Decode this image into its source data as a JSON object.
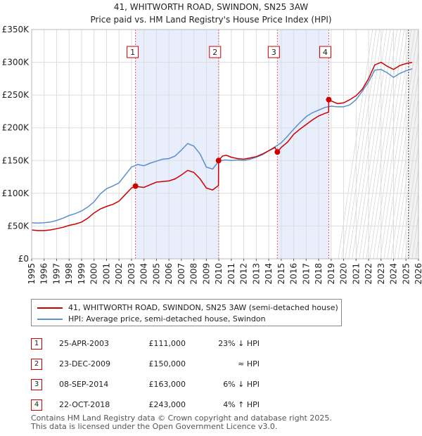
{
  "title_line1": "41, WHITWORTH ROAD, SWINDON, SN25 3AW",
  "title_line2": "Price paid vs. HM Land Registry's House Price Index (HPI)",
  "legend": {
    "property_label": "41, WHITWORTH ROAD, SWINDON, SN25 3AW (semi-detached house)",
    "hpi_label": "HPI: Average price, semi-detached house, Swindon"
  },
  "colors": {
    "property": "#cc0000",
    "hpi": "#5a8fd0",
    "shade": "#e8eefb",
    "marker_line": "#e06060"
  },
  "sales": [
    {
      "num": "1",
      "date": "25-APR-2003",
      "price": "£111,000",
      "hpi": "23% ↓ HPI"
    },
    {
      "num": "2",
      "date": "23-DEC-2009",
      "price": "£150,000",
      "hpi": "≈ HPI"
    },
    {
      "num": "3",
      "date": "08-SEP-2014",
      "price": "£163,000",
      "hpi": "6% ↓ HPI"
    },
    {
      "num": "4",
      "date": "22-OCT-2018",
      "price": "£243,000",
      "hpi": "4% ↑ HPI"
    }
  ],
  "footer_line1": "Contains HM Land Registry data © Crown copyright and database right 2025.",
  "footer_line2": "This data is licensed under the Open Government Licence v3.0.",
  "chart_data": {
    "type": "line",
    "title": "41, WHITWORTH ROAD, SWINDON, SN25 3AW",
    "subtitle": "Price paid vs. HM Land Registry's House Price Index (HPI)",
    "xlim": [
      1995,
      2026
    ],
    "ylim": [
      0,
      350000
    ],
    "x_ticks": [
      "1995",
      "1996",
      "1997",
      "1998",
      "1999",
      "2000",
      "2001",
      "2002",
      "2003",
      "2004",
      "2005",
      "2006",
      "2007",
      "2008",
      "2009",
      "2010",
      "2011",
      "2012",
      "2013",
      "2014",
      "2015",
      "2016",
      "2017",
      "2018",
      "2019",
      "2020",
      "2021",
      "2022",
      "2023",
      "2024",
      "2025",
      "2026"
    ],
    "y_ticks": [
      {
        "value": 0,
        "label": "£0"
      },
      {
        "value": 50000,
        "label": "£50K"
      },
      {
        "value": 100000,
        "label": "£100K"
      },
      {
        "value": 150000,
        "label": "£150K"
      },
      {
        "value": 200000,
        "label": "£200K"
      },
      {
        "value": 250000,
        "label": "£250K"
      },
      {
        "value": 300000,
        "label": "£300K"
      },
      {
        "value": 350000,
        "label": "£350K"
      }
    ],
    "shaded_ranges": [
      [
        2003.3,
        2009.98
      ],
      [
        2014.69,
        2018.81
      ]
    ],
    "future_start": 2025.2,
    "sale_markers": [
      {
        "label": "1",
        "x": 2003.32,
        "y": 111000
      },
      {
        "label": "2",
        "x": 2009.98,
        "y": 150000
      },
      {
        "label": "3",
        "x": 2014.69,
        "y": 163000
      },
      {
        "label": "4",
        "x": 2018.81,
        "y": 243000
      }
    ],
    "series": [
      {
        "name": "HPI: Average price, semi-detached house, Swindon",
        "color": "#5a8fd0",
        "points": [
          [
            1995,
            55000
          ],
          [
            1995.5,
            54500
          ],
          [
            1996,
            55000
          ],
          [
            1996.5,
            56000
          ],
          [
            1997,
            58500
          ],
          [
            1997.5,
            62000
          ],
          [
            1998,
            66000
          ],
          [
            1998.5,
            69000
          ],
          [
            1999,
            73000
          ],
          [
            1999.5,
            79000
          ],
          [
            2000,
            87000
          ],
          [
            2000.5,
            99000
          ],
          [
            2001,
            107000
          ],
          [
            2001.5,
            111000
          ],
          [
            2002,
            116000
          ],
          [
            2002.5,
            128000
          ],
          [
            2003,
            140000
          ],
          [
            2003.5,
            144000
          ],
          [
            2004,
            142000
          ],
          [
            2004.5,
            146000
          ],
          [
            2005,
            149000
          ],
          [
            2005.5,
            152000
          ],
          [
            2006,
            153000
          ],
          [
            2006.5,
            157000
          ],
          [
            2007,
            166000
          ],
          [
            2007.5,
            176000
          ],
          [
            2008,
            172000
          ],
          [
            2008.5,
            160000
          ],
          [
            2009,
            140000
          ],
          [
            2009.5,
            137000
          ],
          [
            2010,
            149000
          ],
          [
            2010.5,
            151000
          ],
          [
            2011,
            150000
          ],
          [
            2011.5,
            151000
          ],
          [
            2012,
            150000
          ],
          [
            2012.5,
            152000
          ],
          [
            2013,
            155000
          ],
          [
            2013.5,
            159000
          ],
          [
            2014,
            165000
          ],
          [
            2014.5,
            171000
          ],
          [
            2015,
            177000
          ],
          [
            2015.5,
            187000
          ],
          [
            2016,
            198000
          ],
          [
            2016.5,
            208000
          ],
          [
            2017,
            217000
          ],
          [
            2017.5,
            223000
          ],
          [
            2018,
            227000
          ],
          [
            2018.5,
            231000
          ],
          [
            2019,
            233000
          ],
          [
            2019.5,
            232000
          ],
          [
            2020,
            232000
          ],
          [
            2020.5,
            235000
          ],
          [
            2021,
            243000
          ],
          [
            2021.5,
            256000
          ],
          [
            2022,
            270000
          ],
          [
            2022.5,
            288000
          ],
          [
            2023,
            289000
          ],
          [
            2023.5,
            284000
          ],
          [
            2024,
            277000
          ],
          [
            2024.5,
            283000
          ],
          [
            2025,
            287000
          ],
          [
            2025.5,
            290000
          ]
        ]
      },
      {
        "name": "41, WHITWORTH ROAD, SWINDON, SN25 3AW (semi-detached house)",
        "color": "#cc0000",
        "points": [
          [
            1995,
            44000
          ],
          [
            1995.5,
            43000
          ],
          [
            1996,
            43000
          ],
          [
            1996.5,
            44000
          ],
          [
            1997,
            46000
          ],
          [
            1997.5,
            48000
          ],
          [
            1998,
            51000
          ],
          [
            1998.5,
            53000
          ],
          [
            1999,
            56000
          ],
          [
            1999.5,
            62000
          ],
          [
            2000,
            70000
          ],
          [
            2000.5,
            76000
          ],
          [
            2001,
            80000
          ],
          [
            2001.5,
            83000
          ],
          [
            2002,
            88000
          ],
          [
            2002.5,
            98000
          ],
          [
            2003,
            108000
          ],
          [
            2003.32,
            111000
          ],
          [
            2003.5,
            110000
          ],
          [
            2004,
            109000
          ],
          [
            2004.5,
            113000
          ],
          [
            2005,
            117000
          ],
          [
            2005.5,
            118000
          ],
          [
            2006,
            119000
          ],
          [
            2006.5,
            122000
          ],
          [
            2007,
            128000
          ],
          [
            2007.5,
            135000
          ],
          [
            2008,
            132000
          ],
          [
            2008.5,
            122000
          ],
          [
            2009,
            108000
          ],
          [
            2009.5,
            105000
          ],
          [
            2009.97,
            112000
          ],
          [
            2009.98,
            150000
          ],
          [
            2010.3,
            157000
          ],
          [
            2010.6,
            158000
          ],
          [
            2011,
            155000
          ],
          [
            2011.5,
            153000
          ],
          [
            2012,
            152000
          ],
          [
            2012.5,
            154000
          ],
          [
            2013,
            156000
          ],
          [
            2013.5,
            160000
          ],
          [
            2014,
            165000
          ],
          [
            2014.5,
            170000
          ],
          [
            2014.69,
            163000
          ],
          [
            2015,
            170000
          ],
          [
            2015.5,
            178000
          ],
          [
            2016,
            190000
          ],
          [
            2016.5,
            198000
          ],
          [
            2017,
            205000
          ],
          [
            2017.5,
            212000
          ],
          [
            2018,
            218000
          ],
          [
            2018.5,
            222000
          ],
          [
            2018.8,
            224000
          ],
          [
            2018.81,
            243000
          ],
          [
            2019,
            241000
          ],
          [
            2019.5,
            237000
          ],
          [
            2020,
            238000
          ],
          [
            2020.5,
            243000
          ],
          [
            2021,
            249000
          ],
          [
            2021.5,
            259000
          ],
          [
            2022,
            275000
          ],
          [
            2022.5,
            296000
          ],
          [
            2023,
            300000
          ],
          [
            2023.5,
            294000
          ],
          [
            2024,
            289000
          ],
          [
            2024.5,
            295000
          ],
          [
            2025,
            298000
          ],
          [
            2025.5,
            300000
          ]
        ]
      }
    ]
  }
}
